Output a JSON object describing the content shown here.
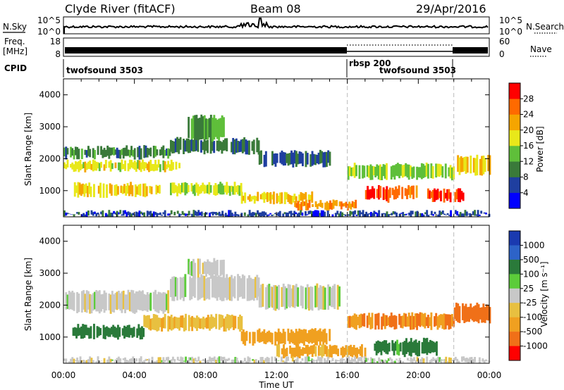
{
  "header": {
    "radar_title": "Clyde River (fitACF)",
    "beam": "Beam 08",
    "date": "29/Apr/2016"
  },
  "status_panels": {
    "nsky_label": "N.Sky",
    "nsky_ticks": [
      "10^5",
      "10^0"
    ],
    "nsearch_label": "N.Search",
    "freq_label_line1": "Freq.",
    "freq_label_line2": "[MHz]",
    "freq_ticks": [
      "18",
      "8"
    ],
    "nave_ticks": [
      "60",
      "0"
    ],
    "nave_label": "Nave",
    "cpid_label": "CPID",
    "cpid_segments": [
      {
        "name": "twofsound 3503",
        "start_hour": 0,
        "end_hour": 16
      },
      {
        "name": "rbsp 200",
        "start_hour": 16,
        "end_hour": 22
      },
      {
        "name": "twofsound 3503",
        "start_hour": 16,
        "end_hour": 22
      }
    ]
  },
  "colors": {
    "power_scale": [
      "#0000ff",
      "#1f3fa0",
      "#3a7a3a",
      "#5fbf3a",
      "#e8e81a",
      "#f5a500",
      "#ff6a00",
      "#ff0000"
    ],
    "velocity_scale": [
      "#1a3ab0",
      "#2d63c8",
      "#2a7a3a",
      "#5ccc3a",
      "#c8c8c8",
      "#e8c040",
      "#f0a020",
      "#f07018",
      "#ff0000"
    ]
  },
  "chart_data": [
    {
      "type": "heatmap",
      "title": "Power",
      "xlabel": "Time UT",
      "ylabel": "Slant Range [km]",
      "x_ticks": [
        "00:00",
        "04:00",
        "08:00",
        "12:00",
        "16:00",
        "20:00",
        "00:00"
      ],
      "y_ticks": [
        1000,
        2000,
        3000,
        4000
      ],
      "xlim_hours": [
        0,
        24
      ],
      "ylim_km": [
        180,
        4500
      ],
      "colorbar_label": "Power [dB]",
      "colorbar_ticks": [
        4,
        8,
        12,
        16,
        20,
        24,
        28
      ],
      "colorbar_range": [
        0,
        32
      ],
      "cpid_change_hours": [
        16,
        22
      ],
      "bands": [
        {
          "t0": 0.0,
          "t1": 6.0,
          "r0": 2050,
          "r1": 2350,
          "value": 10
        },
        {
          "t0": 6.0,
          "t1": 11.0,
          "r0": 2200,
          "r1": 2600,
          "value": 9
        },
        {
          "t0": 11.0,
          "t1": 15.0,
          "r0": 1800,
          "r1": 2200,
          "value": 8
        },
        {
          "t0": 0.0,
          "t1": 6.5,
          "r0": 1650,
          "r1": 1900,
          "value": 18
        },
        {
          "t0": 0.5,
          "t1": 5.5,
          "r0": 850,
          "r1": 1200,
          "value": 20
        },
        {
          "t0": 6.0,
          "t1": 10.0,
          "r0": 900,
          "r1": 1200,
          "value": 17
        },
        {
          "t0": 10.0,
          "t1": 14.0,
          "r0": 650,
          "r1": 900,
          "value": 20
        },
        {
          "t0": 13.0,
          "t1": 16.5,
          "r0": 450,
          "r1": 650,
          "value": 23
        },
        {
          "t0": 16.0,
          "t1": 22.0,
          "r0": 1400,
          "r1": 1800,
          "value": 15
        },
        {
          "t0": 17.0,
          "t1": 18.5,
          "r0": 700,
          "r1": 1100,
          "value": 28
        },
        {
          "t0": 18.5,
          "t1": 20.0,
          "r0": 800,
          "r1": 1100,
          "value": 25
        },
        {
          "t0": 20.5,
          "t1": 22.5,
          "r0": 700,
          "r1": 1000,
          "value": 29
        },
        {
          "t0": 22.0,
          "t1": 24.0,
          "r0": 1550,
          "r1": 2050,
          "value": 20
        },
        {
          "t0": 7.0,
          "t1": 9.0,
          "r0": 2600,
          "r1": 3300,
          "value": 12
        },
        {
          "t0": 0.0,
          "t1": 24.0,
          "r0": 200,
          "r1": 320,
          "value": 6
        }
      ]
    },
    {
      "type": "heatmap",
      "title": "Velocity",
      "xlabel": "Time UT",
      "ylabel": "Slant Range [km]",
      "x_ticks": [
        "00:00",
        "04:00",
        "08:00",
        "12:00",
        "16:00",
        "20:00",
        "00:00"
      ],
      "y_ticks": [
        1000,
        2000,
        3000,
        4000
      ],
      "xlim_hours": [
        0,
        24
      ],
      "ylim_km": [
        180,
        4500
      ],
      "colorbar_label": "Velocity [m s⁻¹]",
      "colorbar_ticks": [
        "1000",
        "500",
        "100",
        "25",
        "-25",
        "-100",
        "-500",
        "-1000"
      ],
      "cpid_change_hours": [
        16,
        22
      ],
      "bands": [
        {
          "t0": 0.0,
          "t1": 6.0,
          "r0": 1800,
          "r1": 2400,
          "value": 0
        },
        {
          "t0": 6.0,
          "t1": 11.0,
          "r0": 2200,
          "r1": 2900,
          "value": 0
        },
        {
          "t0": 7.0,
          "t1": 9.0,
          "r0": 2900,
          "r1": 3400,
          "value": 0
        },
        {
          "t0": 11.0,
          "t1": 15.5,
          "r0": 1900,
          "r1": 2600,
          "value": 0
        },
        {
          "t0": 0.5,
          "t1": 4.5,
          "r0": 1000,
          "r1": 1350,
          "value": 150
        },
        {
          "t0": 4.5,
          "t1": 10.0,
          "r0": 1250,
          "r1": 1650,
          "value": -80
        },
        {
          "t0": 10.0,
          "t1": 15.0,
          "r0": 800,
          "r1": 1200,
          "value": -150
        },
        {
          "t0": 12.0,
          "t1": 17.0,
          "r0": 400,
          "r1": 700,
          "value": -120
        },
        {
          "t0": 16.0,
          "t1": 22.0,
          "r0": 1300,
          "r1": 1700,
          "value": -500
        },
        {
          "t0": 17.5,
          "t1": 19.0,
          "r0": 500,
          "r1": 850,
          "value": 120
        },
        {
          "t0": 19.0,
          "t1": 21.0,
          "r0": 450,
          "r1": 900,
          "value": 400
        },
        {
          "t0": 22.0,
          "t1": 24.0,
          "r0": 1500,
          "r1": 2000,
          "value": -600
        },
        {
          "t0": 0.0,
          "t1": 24.0,
          "r0": 200,
          "r1": 320,
          "value": 0
        }
      ]
    }
  ]
}
